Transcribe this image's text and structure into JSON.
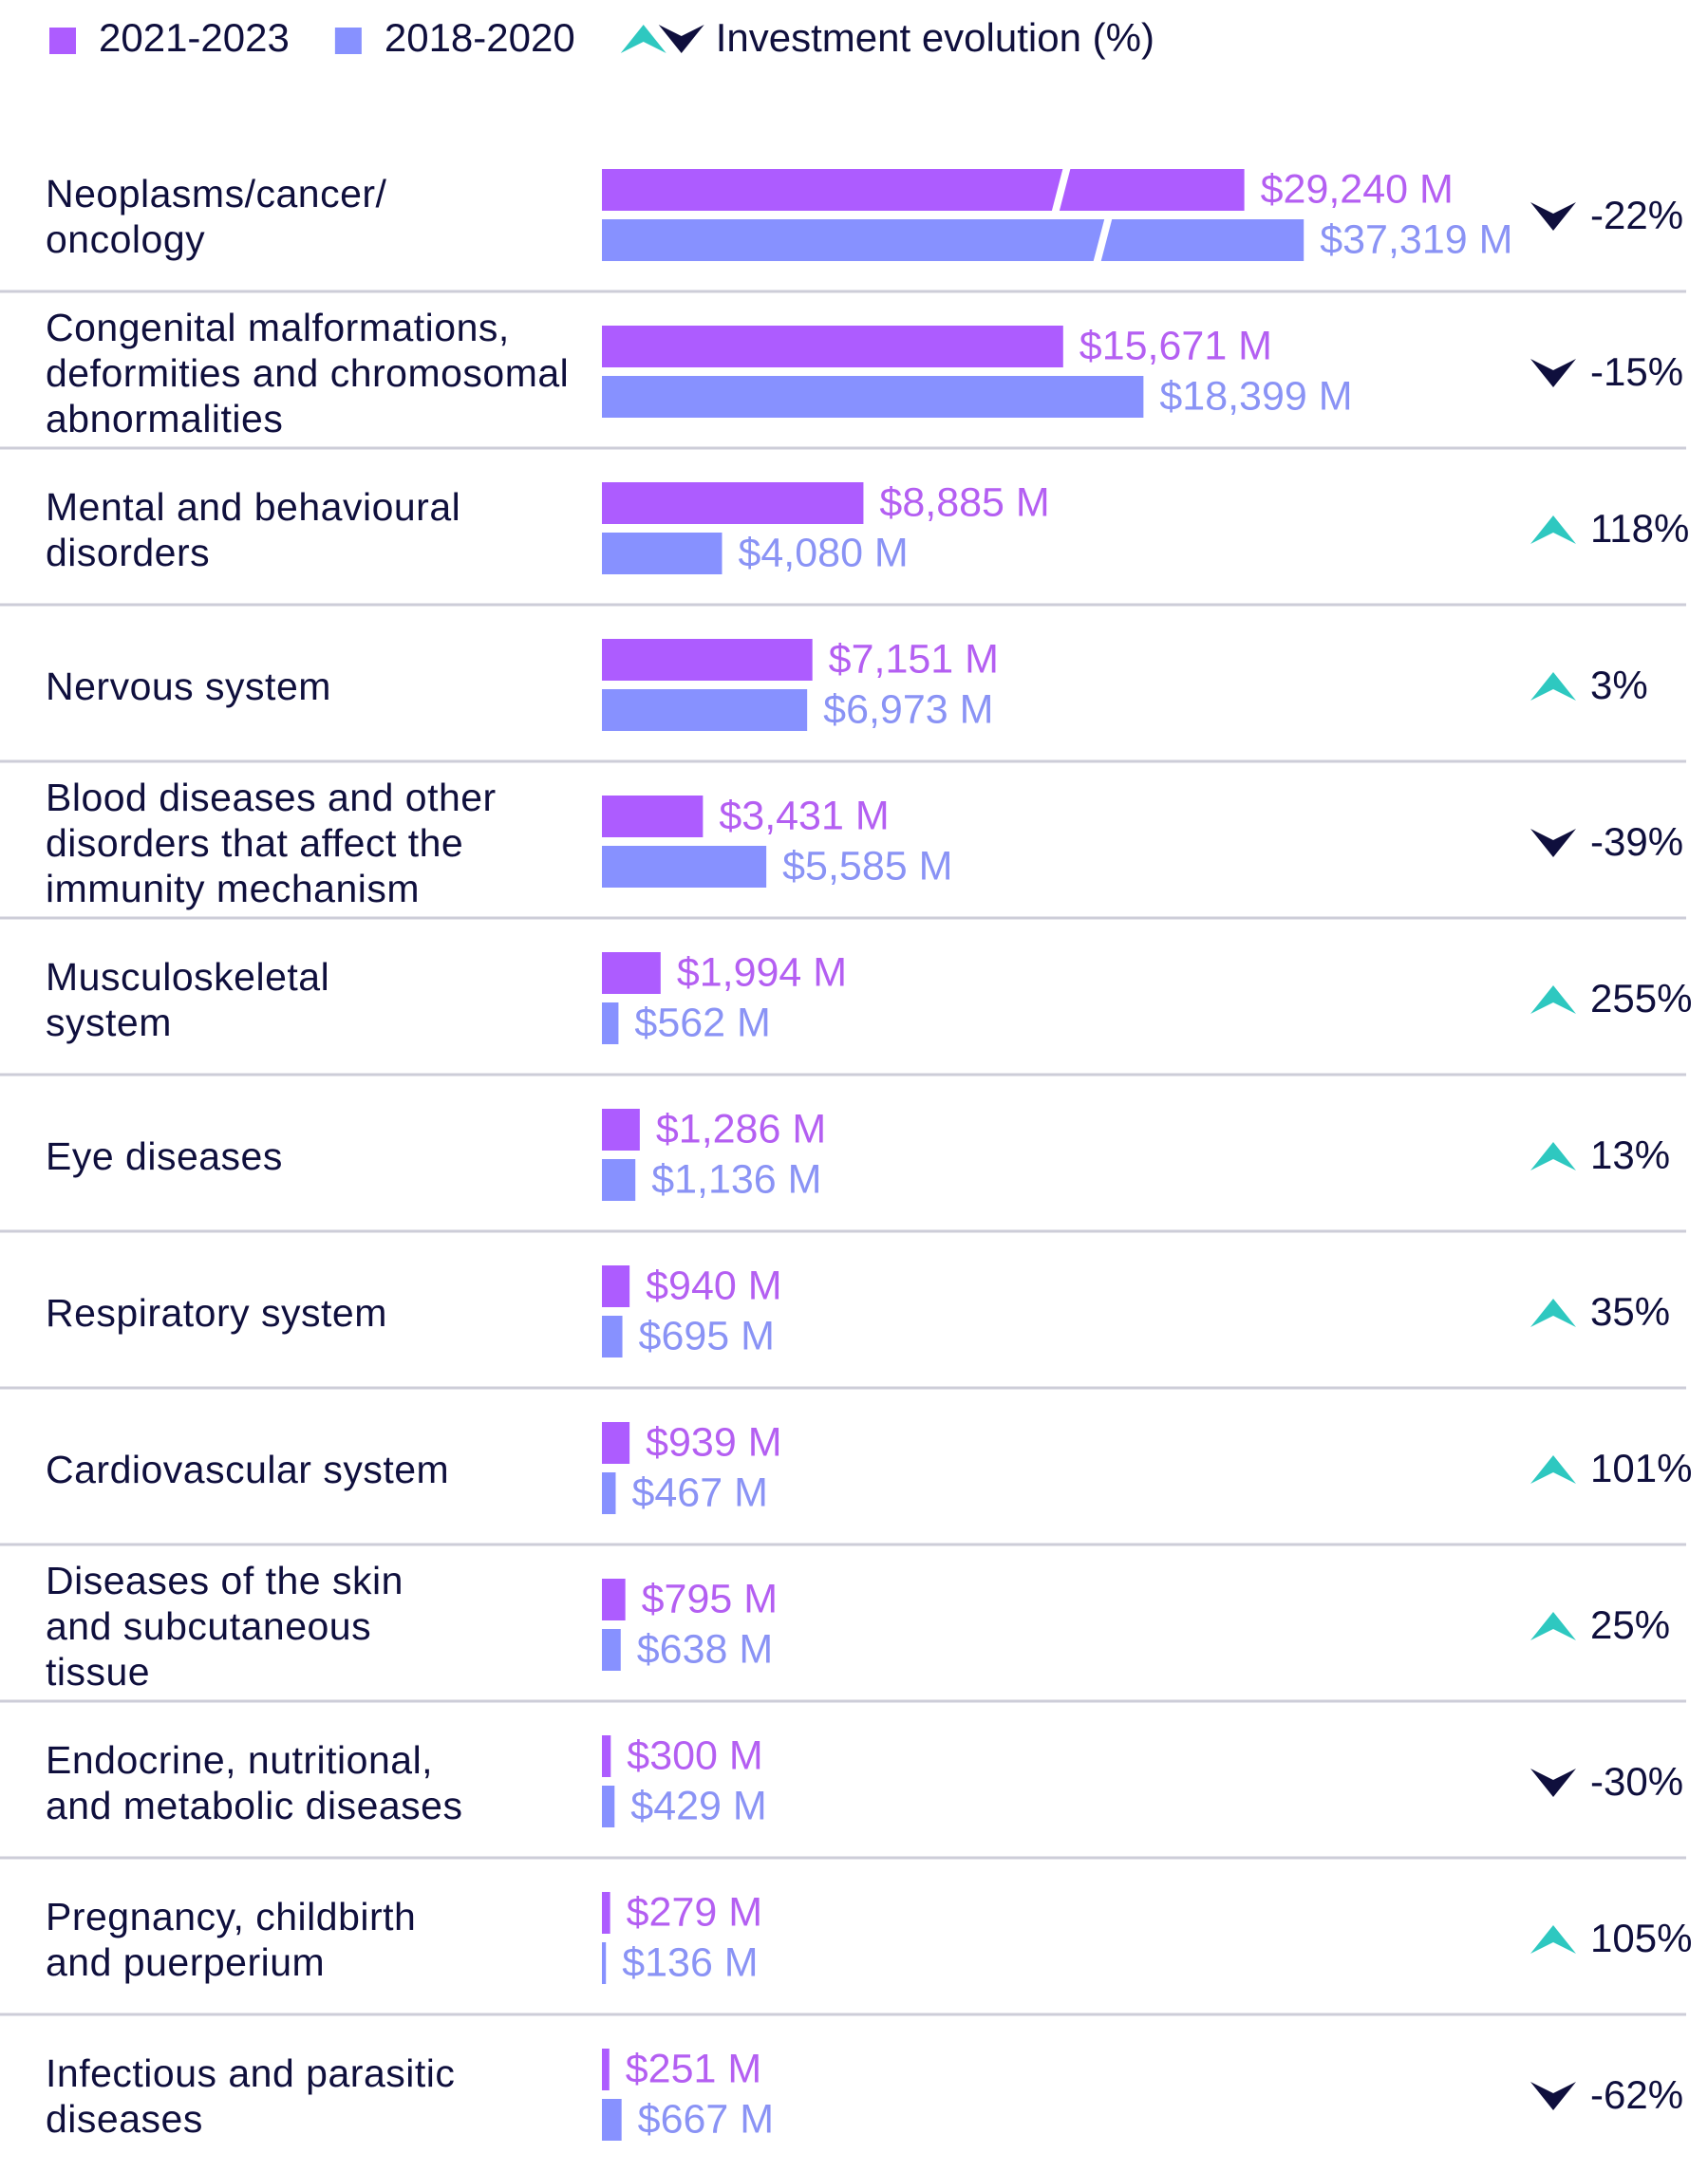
{
  "chart_data": {
    "type": "bar",
    "orientation": "horizontal",
    "categories": [
      "Neoplasms/cancer/\noncology",
      "Congenital malformations,\ndeformities and chromosomal\nabnormalities",
      "Mental and behavioural\ndisorders",
      "Nervous system",
      "Blood diseases and other\ndisorders that affect the\nimmunity mechanism",
      "Musculoskeletal\nsystem",
      "Eye diseases",
      "Respiratory system",
      "Cardiovascular system",
      "Diseases of the skin\nand subcutaneous\ntissue",
      "Endocrine, nutritional,\nand metabolic diseases",
      "Pregnancy, childbirth\nand puerperium",
      "Infectious and parasitic\ndiseases"
    ],
    "series": [
      {
        "name": "2021-2023",
        "color": "#ad5cff",
        "label_color": "#b45ff2",
        "values": [
          29240,
          15671,
          8885,
          7151,
          3431,
          1994,
          1286,
          940,
          939,
          795,
          300,
          279,
          251
        ],
        "value_labels": [
          "$29,240 M",
          "$15,671 M",
          "$8,885 M",
          "$7,151 M",
          "$3,431 M",
          "$1,994 M",
          "$1,286 M",
          "$940 M",
          "$939 M",
          "$795 M",
          "$300 M",
          "$279 M",
          "$251 M"
        ]
      },
      {
        "name": "2018-2020",
        "color": "#8791ff",
        "label_color": "#8a93f5",
        "values": [
          37319,
          18399,
          4080,
          6973,
          5585,
          562,
          1136,
          695,
          467,
          638,
          429,
          136,
          667
        ],
        "value_labels": [
          "$37,319 M",
          "$18,399 M",
          "$4,080 M",
          "$6,973 M",
          "$5,585 M",
          "$562 M",
          "$1,136 M",
          "$695 M",
          "$467 M",
          "$638 M",
          "$429 M",
          "$136 M",
          "$667 M"
        ]
      }
    ],
    "change": {
      "name": "Investment evolution (%)",
      "up_color": "#2ec8c0",
      "down_color": "#0f0f3d",
      "values": [
        -22,
        -15,
        118,
        3,
        -39,
        255,
        13,
        35,
        101,
        25,
        -30,
        105,
        -62
      ],
      "value_labels": [
        "-22%",
        "-15%",
        "118%",
        "3%",
        "-39%",
        "255%",
        "13%",
        "35%",
        "101%",
        "25%",
        "-30%",
        "105%",
        "-62%"
      ]
    }
  }
}
